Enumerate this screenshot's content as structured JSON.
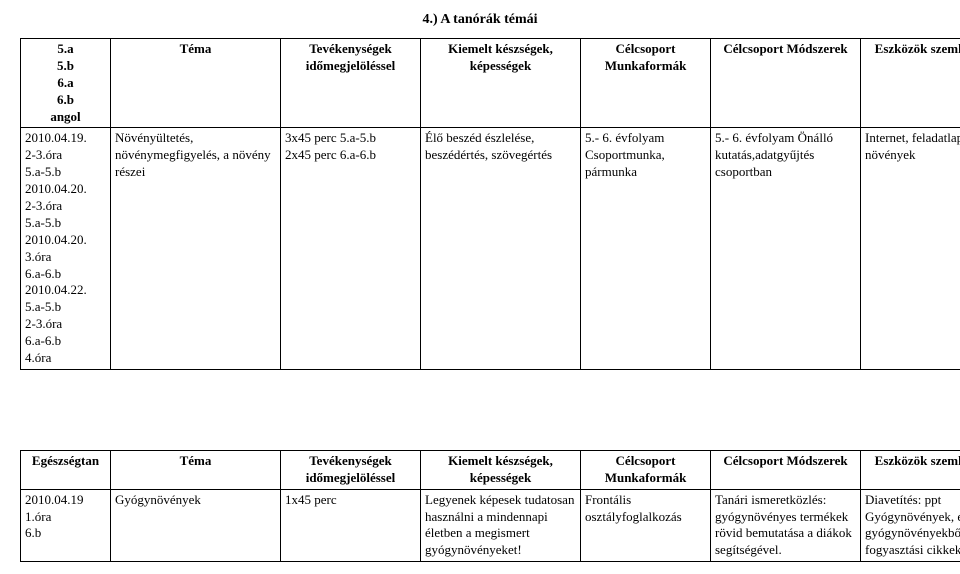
{
  "title": "4.) A tanórák témái",
  "table1": {
    "headers": {
      "col1": "5.a\n5.b\n6.a\n6.b\nangol",
      "col2": "Téma",
      "col3": "Tevékenységek időmegjelöléssel",
      "col4": "Kiemelt készségek, képességek",
      "col5": "Célcsoport Munkaformák",
      "col6": "Célcsoport Módszerek",
      "col7": "Eszközök szemléltetés"
    },
    "row1": {
      "col1": "2010.04.19.\n2-3.óra\n5.a-5.b\n2010.04.20.\n2-3.óra\n5.a-5.b\n2010.04.20.\n3.óra\n6.a-6.b\n2010.04.22.\n5.a-5.b\n2-3.óra\n6.a-6.b\n4.óra",
      "col2": "Növényültetés, növénymegfigyelés, a növény részei",
      "col3": "3x45 perc 5.a-5.b\n2x45 perc 6.a-6.b",
      "col4": "Élő beszéd észlelése, beszédértés, szövegértés",
      "col5": "5.- 6. évfolyam Csoportmunka, pármunka",
      "col6": "5.- 6. évfolyam Önálló kutatás,adatgyűjtés csoportban",
      "col7": "Internet, feladatlapok, növények"
    }
  },
  "table2": {
    "headers": {
      "col1": "Egészségtan",
      "col2": "Téma",
      "col3": "Tevékenységek időmegjelöléssel",
      "col4": "Kiemelt készségek, képességek",
      "col5": "Célcsoport Munkaformák",
      "col6": "Célcsoport Módszerek",
      "col7": "Eszközök szemléltetés"
    },
    "row1": {
      "col1": "2010.04.19\n1.óra\n6.b",
      "col2": "Gyógynövények",
      "col3": "1x45 perc",
      "col4": "Legyenek képesek tudatosan használni a mindennapi életben a megismert gyógynövényeket!",
      "col5": "Frontális osztályfoglalkozás",
      "col6": "Tanári ismeretközlés: gyógynövényes termékek rövid bemutatása a diákok segítségével.",
      "col7": "Diavetítés: ppt Gyógynövények, és gyógynövényekből készült fogyasztási cikkek (tea)"
    }
  }
}
